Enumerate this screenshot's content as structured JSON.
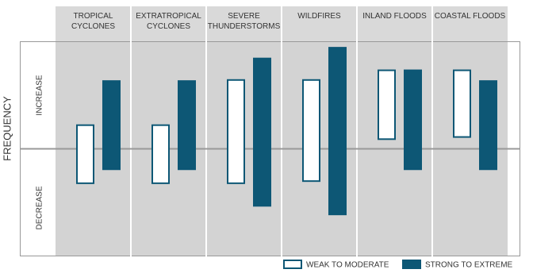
{
  "chart_data": {
    "type": "range-bar",
    "y_label": "FREQUENCY",
    "annotations": [
      "INCREASE",
      "DECREASE"
    ],
    "categories": [
      "TROPICAL CYCLONES",
      "EXTRATROPICAL CYCLONES",
      "SEVERE THUNDERSTORMS",
      "WILDFIRES",
      "INLAND FLOODS",
      "COASTAL FLOODS"
    ],
    "ylim": [
      -1,
      1
    ],
    "series": [
      {
        "name": "WEAK TO MODERATE",
        "color": "#ffffff",
        "low": [
          -0.32,
          -0.32,
          -0.32,
          -0.3,
          0.09,
          0.11
        ],
        "high": [
          0.22,
          0.22,
          0.64,
          0.64,
          0.73,
          0.73
        ]
      },
      {
        "name": "STRONG TO EXTREME",
        "color": "#0d5775",
        "low": [
          -0.19,
          -0.19,
          -0.53,
          -0.61,
          -0.19,
          -0.19
        ],
        "high": [
          0.63,
          0.63,
          0.84,
          0.94,
          0.73,
          0.63
        ]
      }
    ]
  }
}
